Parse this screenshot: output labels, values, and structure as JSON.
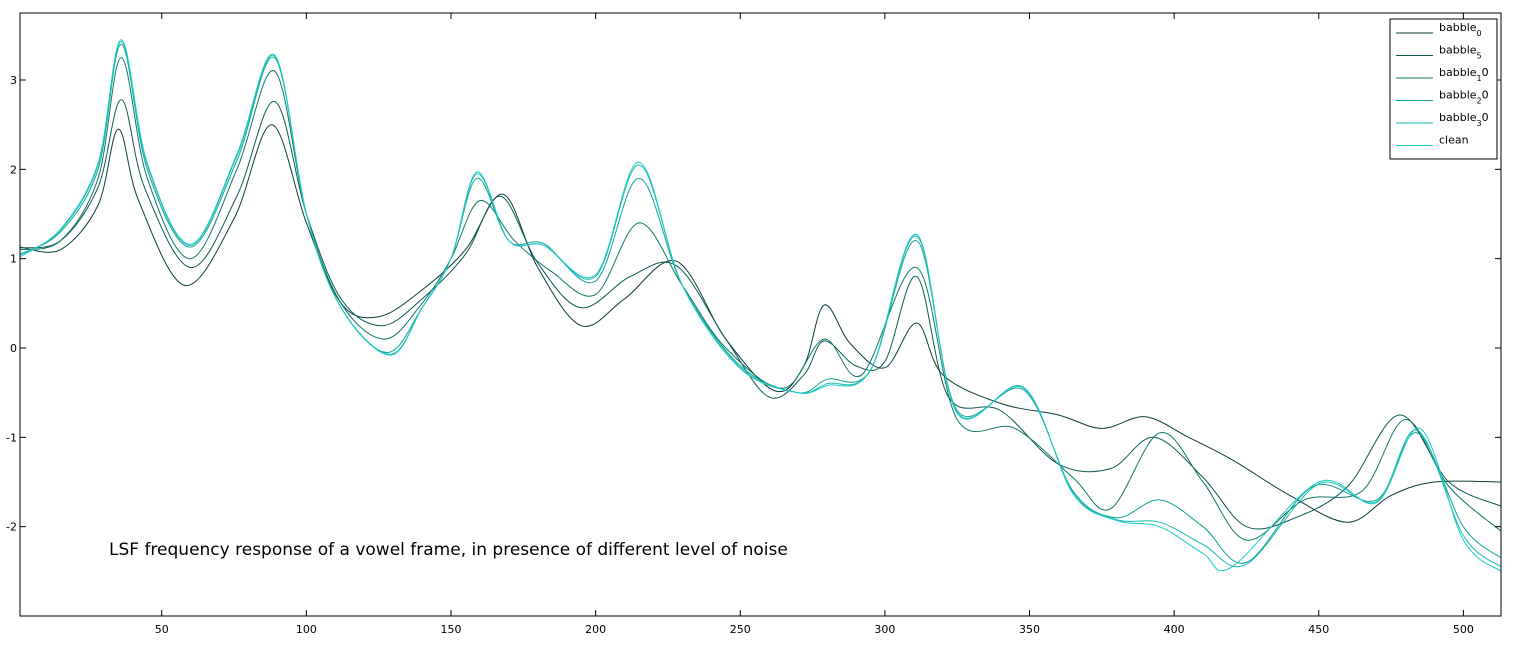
{
  "chart_data": {
    "type": "line",
    "title": "",
    "xlabel": "",
    "ylabel": "",
    "xlim": [
      1,
      513
    ],
    "ylim": [
      -3,
      3.75
    ],
    "grid": false,
    "legend_position": "top-right",
    "x_ticks": [
      50,
      100,
      150,
      200,
      250,
      300,
      350,
      400,
      450,
      500
    ],
    "y_ticks": [
      -2,
      -1,
      0,
      1,
      2,
      3
    ],
    "annotation": "LSF frequency response of a vowel frame, in presence of different level of noise",
    "series": [
      {
        "name": "babble0",
        "legend_main": "babble",
        "legend_sub": "0",
        "legend_tail": "",
        "color": "#0b3d3d",
        "x": [
          1,
          15,
          28,
          35,
          42,
          58,
          75,
          88,
          100,
          112,
          125,
          140,
          155,
          168,
          180,
          195,
          210,
          228,
          245,
          262,
          272,
          279,
          288,
          300,
          311,
          320,
          340,
          360,
          375,
          390,
          405,
          420,
          440,
          460,
          475,
          490,
          513
        ],
        "y": [
          1.13,
          1.1,
          1.6,
          2.45,
          1.65,
          0.7,
          1.45,
          2.5,
          1.4,
          0.5,
          0.35,
          0.65,
          1.1,
          1.72,
          0.9,
          0.25,
          0.55,
          0.97,
          0.1,
          -0.48,
          -0.2,
          0.48,
          0.05,
          -0.22,
          0.28,
          -0.3,
          -0.62,
          -0.75,
          -0.9,
          -0.77,
          -1.0,
          -1.25,
          -1.65,
          -1.95,
          -1.65,
          -1.5,
          -1.5
        ]
      },
      {
        "name": "babble5",
        "legend_main": "babble",
        "legend_sub": "5",
        "legend_tail": "",
        "color": "#0d5a52",
        "x": [
          1,
          15,
          28,
          36,
          44,
          60,
          76,
          89,
          100,
          112,
          126,
          140,
          155,
          167,
          180,
          195,
          212,
          228,
          245,
          260,
          272,
          279,
          290,
          300,
          311,
          322,
          340,
          360,
          378,
          393,
          410,
          425,
          442,
          460,
          478,
          495,
          513
        ],
        "y": [
          1.12,
          1.2,
          1.8,
          2.78,
          1.8,
          0.9,
          1.7,
          2.76,
          1.5,
          0.55,
          0.25,
          0.55,
          1.05,
          1.7,
          0.95,
          0.45,
          0.8,
          0.92,
          0.1,
          -0.55,
          -0.3,
          0.08,
          -0.2,
          -0.15,
          0.8,
          -0.55,
          -0.7,
          -1.3,
          -1.35,
          -1.0,
          -1.45,
          -2.0,
          -1.9,
          -1.55,
          -0.75,
          -1.5,
          -1.77
        ]
      },
      {
        "name": "babble10",
        "legend_main": "babble",
        "legend_sub": "1",
        "legend_tail": "0",
        "color": "#11776a",
        "x": [
          1,
          15,
          28,
          36,
          45,
          60,
          76,
          89,
          100,
          112,
          127,
          140,
          150,
          160,
          172,
          185,
          200,
          215,
          230,
          245,
          265,
          279,
          292,
          311,
          325,
          345,
          365,
          378,
          395,
          410,
          425,
          445,
          465,
          480,
          495,
          513
        ],
        "y": [
          1.1,
          1.2,
          1.9,
          3.25,
          1.9,
          1.0,
          2.0,
          3.1,
          1.5,
          0.5,
          0.1,
          0.5,
          1.0,
          1.65,
          1.2,
          0.85,
          0.6,
          1.4,
          0.7,
          0.0,
          -0.45,
          0.1,
          -0.3,
          0.9,
          -0.8,
          -0.9,
          -1.45,
          -1.8,
          -0.95,
          -1.5,
          -2.15,
          -1.7,
          -1.6,
          -0.8,
          -1.55,
          -2.05
        ]
      },
      {
        "name": "babble20",
        "legend_main": "babble",
        "legend_sub": "2",
        "legend_tail": "0",
        "color": "#14a397",
        "x": [
          1,
          15,
          28,
          36,
          45,
          60,
          76,
          89,
          100,
          112,
          128,
          140,
          150,
          159,
          170,
          182,
          200,
          215,
          230,
          250,
          270,
          280,
          295,
          311,
          325,
          348,
          365,
          380,
          395,
          410,
          425,
          448,
          470,
          484,
          500,
          513
        ],
        "y": [
          1.05,
          1.3,
          2.0,
          3.4,
          2.0,
          1.13,
          2.1,
          3.25,
          1.5,
          0.45,
          -0.05,
          0.45,
          1.0,
          1.9,
          1.2,
          1.17,
          0.75,
          1.9,
          0.7,
          -0.2,
          -0.5,
          -0.35,
          -0.25,
          1.2,
          -0.7,
          -0.47,
          -1.6,
          -1.9,
          -1.7,
          -2.0,
          -2.4,
          -1.55,
          -1.7,
          -0.95,
          -2.0,
          -2.35
        ]
      },
      {
        "name": "babble30",
        "legend_main": "babble",
        "legend_sub": "3",
        "legend_tail": "0",
        "color": "#17bdb2",
        "x": [
          1,
          15,
          28,
          36,
          45,
          60,
          76,
          89,
          100,
          112,
          129,
          140,
          150,
          159,
          170,
          182,
          200,
          215,
          230,
          250,
          270,
          280,
          295,
          311,
          325,
          348,
          365,
          380,
          395,
          410,
          425,
          450,
          470,
          484,
          500,
          513
        ],
        "y": [
          1.04,
          1.32,
          2.05,
          3.43,
          2.05,
          1.15,
          2.15,
          3.27,
          1.5,
          0.45,
          -0.07,
          0.45,
          1.0,
          1.95,
          1.2,
          1.15,
          0.8,
          2.05,
          0.7,
          -0.22,
          -0.5,
          -0.4,
          -0.25,
          1.25,
          -0.72,
          -0.45,
          -1.62,
          -1.92,
          -1.95,
          -2.2,
          -2.42,
          -1.52,
          -1.72,
          -0.92,
          -2.1,
          -2.45
        ]
      },
      {
        "name": "clean",
        "legend_main": "clean",
        "legend_sub": "",
        "legend_tail": "",
        "color": "#1ccbc8",
        "x": [
          1,
          15,
          28,
          36,
          45,
          60,
          76,
          89,
          100,
          112,
          129,
          140,
          150,
          159,
          170,
          182,
          200,
          215,
          230,
          250,
          270,
          280,
          295,
          311,
          325,
          348,
          365,
          380,
          395,
          410,
          420,
          450,
          470,
          485,
          500,
          513
        ],
        "y": [
          1.02,
          1.33,
          2.07,
          3.45,
          2.07,
          1.16,
          2.17,
          3.28,
          1.5,
          0.45,
          -0.08,
          0.45,
          1.0,
          1.97,
          1.2,
          1.15,
          0.82,
          2.08,
          0.7,
          -0.23,
          -0.5,
          -0.42,
          -0.25,
          1.27,
          -0.73,
          -0.44,
          -1.63,
          -1.93,
          -2.0,
          -2.3,
          -2.45,
          -1.5,
          -1.73,
          -0.9,
          -2.15,
          -2.5
        ]
      }
    ]
  }
}
